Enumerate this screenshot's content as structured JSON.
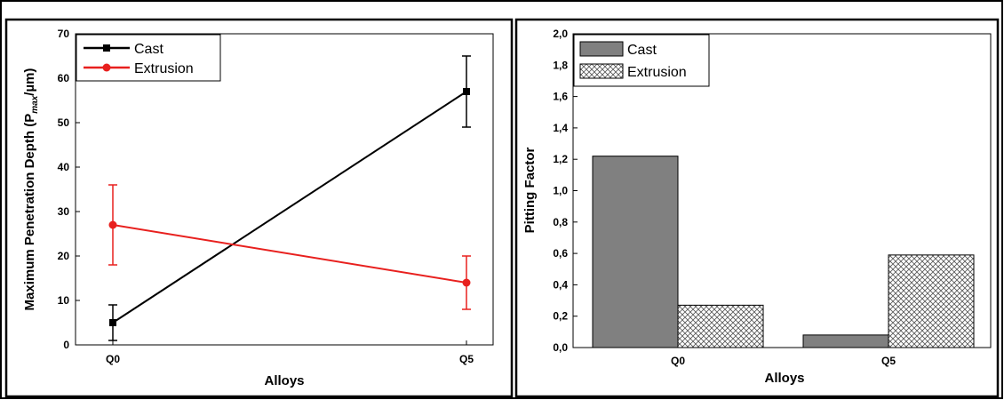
{
  "chart_data": [
    {
      "type": "line",
      "xlabel": "Alloys",
      "ylabel": "Maximum Penetration Depth (P",
      "ylabel_sub": "max",
      "ylabel_end": "/µm)",
      "categories": [
        "Q0",
        "Q5"
      ],
      "ylim": [
        0,
        70
      ],
      "yticks": [
        "0",
        "10",
        "20",
        "30",
        "40",
        "50",
        "60",
        "70"
      ],
      "legend": "top-left",
      "series": [
        {
          "name": "Cast",
          "color": "#000000",
          "marker": "square",
          "values": [
            5,
            57
          ],
          "err_low": [
            1,
            49
          ],
          "err_high": [
            9,
            65
          ]
        },
        {
          "name": "Extrusion",
          "color": "#e8201e",
          "marker": "circle",
          "values": [
            27,
            14
          ],
          "err_low": [
            18,
            8
          ],
          "err_high": [
            36,
            20
          ]
        }
      ]
    },
    {
      "type": "bar",
      "xlabel": "Alloys",
      "ylabel": "Pitting Factor",
      "categories": [
        "Q0",
        "Q5"
      ],
      "ylim": [
        0,
        2.0
      ],
      "yticks": [
        "0,0",
        "0,2",
        "0,4",
        "0,6",
        "0,8",
        "1,0",
        "1,2",
        "1,4",
        "1,6",
        "1,8",
        "2,0"
      ],
      "legend": "top-left",
      "series": [
        {
          "name": "Cast",
          "fill": "#808080",
          "pattern": "solid",
          "values": [
            1.22,
            0.08
          ]
        },
        {
          "name": "Extrusion",
          "fill": "#ffffff",
          "pattern": "crosshatch",
          "values": [
            0.27,
            0.59
          ]
        }
      ]
    }
  ]
}
